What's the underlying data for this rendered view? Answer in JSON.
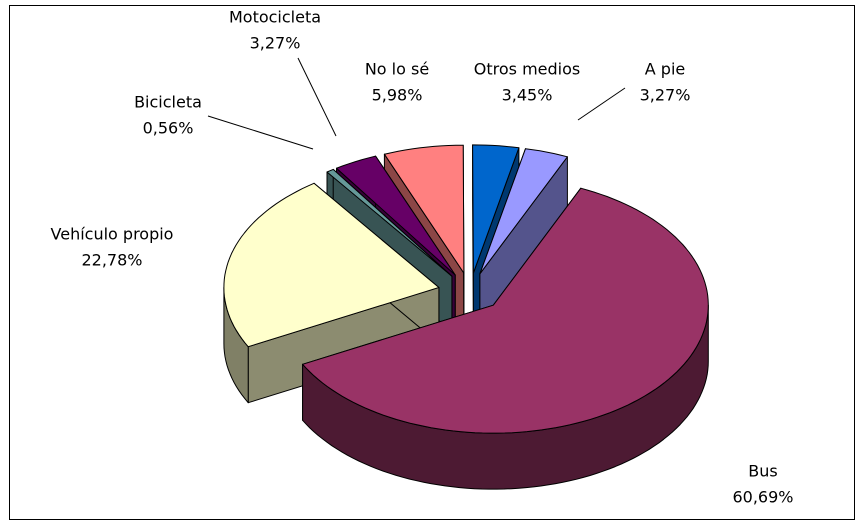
{
  "chart_data": {
    "type": "pie",
    "categories": [
      "Bus",
      "Vehículo propio",
      "Bicicleta",
      "Motocicleta",
      "No lo sé",
      "Otros medios",
      "A pie"
    ],
    "values": [
      60.69,
      22.78,
      0.56,
      3.27,
      5.98,
      3.45,
      3.27
    ],
    "value_labels": [
      "60,69%",
      "22,78%",
      "0,56%",
      "3,27%",
      "5,98%",
      "3,45%",
      "3,27%"
    ],
    "colors": [
      "#993366",
      "#ffffcc",
      "#669999",
      "#660066",
      "#ff8080",
      "#0066cc",
      "#9999ff"
    ]
  }
}
